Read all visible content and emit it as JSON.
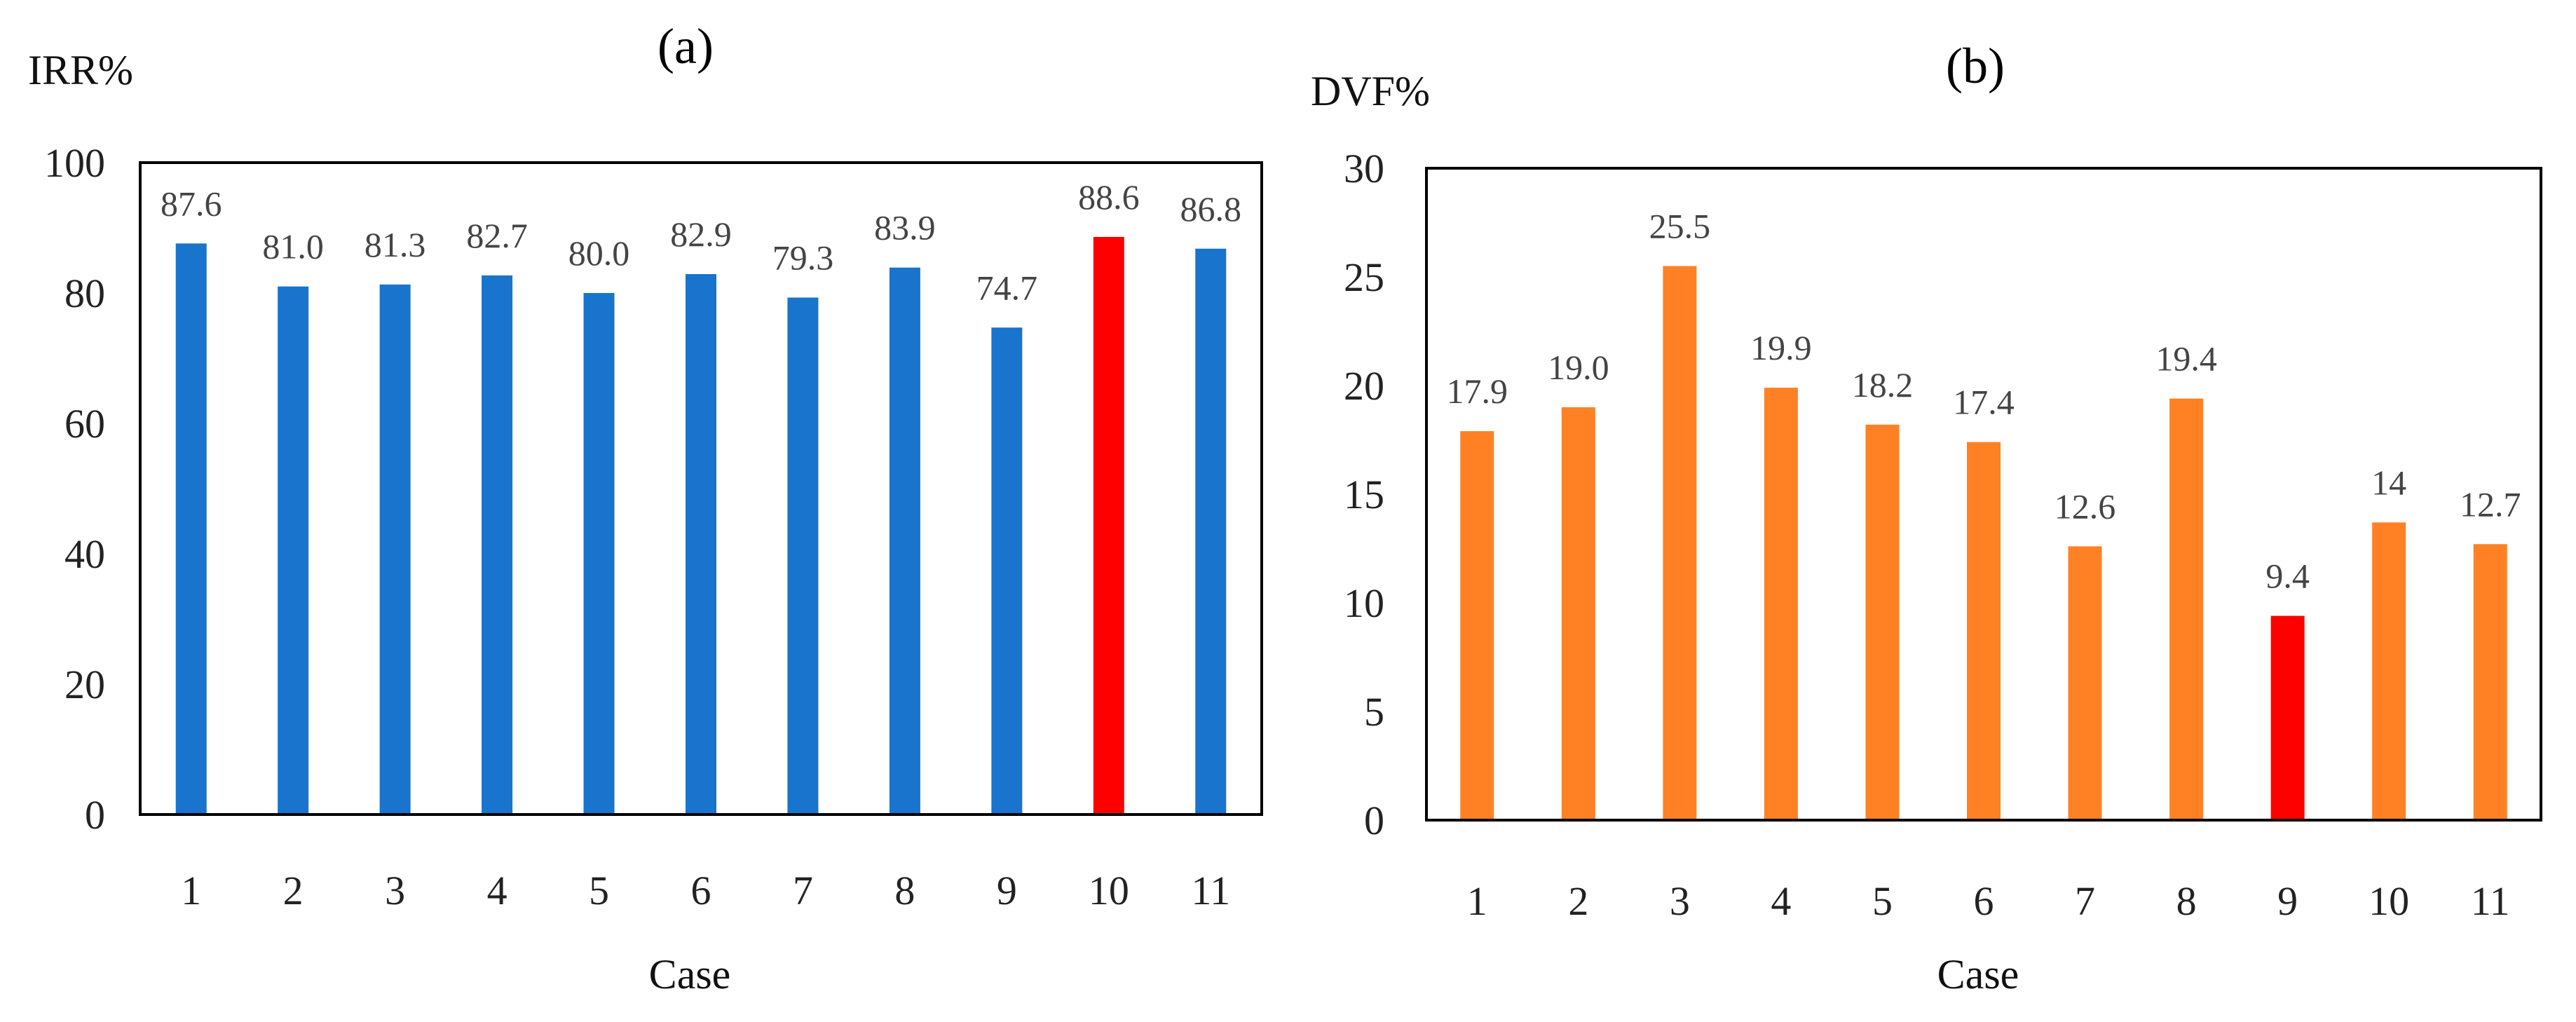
{
  "chart_data": [
    {
      "type": "bar",
      "panel_label": "(a)",
      "title": "(a)",
      "ylabel": "IRR%",
      "xlabel": "Case",
      "ylim": [
        0,
        100
      ],
      "yticks": [
        "0",
        "20",
        "40",
        "60",
        "80",
        "100"
      ],
      "categories": [
        "1",
        "2",
        "3",
        "4",
        "5",
        "6",
        "7",
        "8",
        "9",
        "10",
        "11"
      ],
      "values": [
        87.6,
        81.0,
        81.3,
        82.7,
        80.0,
        82.9,
        79.3,
        83.9,
        74.7,
        88.6,
        86.8
      ],
      "value_labels": [
        "87.6",
        "81.0",
        "81.3",
        "82.7",
        "80.0",
        "82.9",
        "79.3",
        "83.9",
        "74.7",
        "88.6",
        "86.8"
      ],
      "bar_color": "#1874CD",
      "highlight_color": "#FF0000",
      "highlight_category": "10",
      "grid": false
    },
    {
      "type": "bar",
      "panel_label": "(b)",
      "title": "(b)",
      "ylabel": "DVF%",
      "xlabel": "Case",
      "ylim": [
        0,
        30
      ],
      "yticks": [
        "0",
        "5",
        "10",
        "15",
        "20",
        "25",
        "30"
      ],
      "categories": [
        "1",
        "2",
        "3",
        "4",
        "5",
        "6",
        "7",
        "8",
        "9",
        "10",
        "11"
      ],
      "values": [
        17.9,
        19.0,
        25.5,
        19.9,
        18.2,
        17.4,
        12.6,
        19.4,
        9.4,
        13.7,
        12.7
      ],
      "value_labels": [
        "17.9",
        "19.0",
        "25.5",
        "19.9",
        "18.2",
        "17.4",
        "12.6",
        "19.4",
        "9.4",
        "14",
        "12.7"
      ],
      "bar_color": "#FF8124",
      "highlight_color": "#FF0000",
      "highlight_category": "9",
      "grid": false
    }
  ]
}
